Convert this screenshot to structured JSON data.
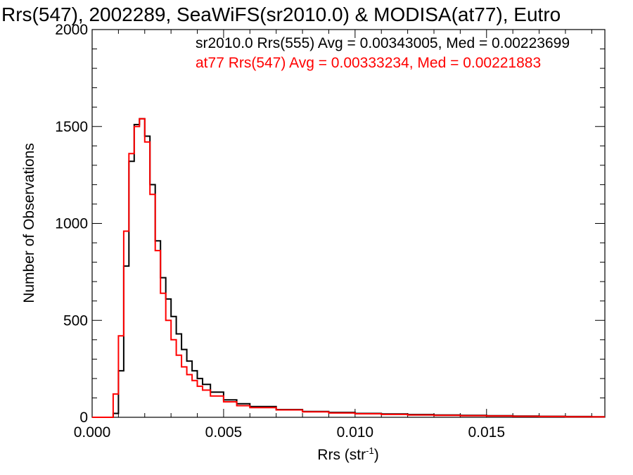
{
  "chart_data": {
    "type": "line",
    "title": "Rrs(547), 2002289, SeaWiFS(sr2010.0) & MODISA(at77), Eutro",
    "xlabel": "Rrs (str",
    "xlabel_sup": "-1",
    "xlabel_close": ")",
    "ylabel": "Number of Observations",
    "xlim": [
      0.0,
      0.0195
    ],
    "ylim": [
      0,
      2000
    ],
    "xticks": [
      {
        "value": 0.0,
        "label": "0.000"
      },
      {
        "value": 0.005,
        "label": "0.005"
      },
      {
        "value": 0.01,
        "label": "0.010"
      },
      {
        "value": 0.015,
        "label": "0.015"
      }
    ],
    "yticks": [
      {
        "value": 0,
        "label": "0"
      },
      {
        "value": 500,
        "label": "500"
      },
      {
        "value": 1000,
        "label": "1000"
      },
      {
        "value": 1500,
        "label": "1500"
      },
      {
        "value": 2000,
        "label": "2000"
      }
    ],
    "grid": false,
    "legend_placement": "top-right",
    "series": [
      {
        "name": "sr2010.0 Rrs(555) Avg = 0.00343005, Med = 0.00223699",
        "color": "#000000",
        "x": [
          0.0008,
          0.001,
          0.0012,
          0.0014,
          0.0016,
          0.0018,
          0.002,
          0.0022,
          0.0024,
          0.0026,
          0.0028,
          0.003,
          0.0032,
          0.0034,
          0.0036,
          0.0038,
          0.004,
          0.0042,
          0.0045,
          0.005,
          0.0055,
          0.006,
          0.007,
          0.008,
          0.009,
          0.01,
          0.011,
          0.012,
          0.013,
          0.014,
          0.015,
          0.016,
          0.017,
          0.018,
          0.019
        ],
        "y": [
          20,
          240,
          780,
          1320,
          1510,
          1540,
          1450,
          1200,
          910,
          720,
          610,
          520,
          430,
          350,
          290,
          240,
          200,
          170,
          130,
          90,
          70,
          55,
          40,
          30,
          25,
          20,
          17,
          14,
          12,
          10,
          8,
          6,
          5,
          4,
          3
        ]
      },
      {
        "name": "at77 Rrs(547) Avg = 0.00333234, Med = 0.00221883",
        "color": "#ff0000",
        "x": [
          0.0008,
          0.001,
          0.0012,
          0.0014,
          0.0016,
          0.0018,
          0.002,
          0.0022,
          0.0024,
          0.0026,
          0.0028,
          0.003,
          0.0032,
          0.0034,
          0.0036,
          0.0038,
          0.004,
          0.0042,
          0.0045,
          0.005,
          0.0055,
          0.006,
          0.007,
          0.008,
          0.009,
          0.01,
          0.011,
          0.012,
          0.013,
          0.014,
          0.015,
          0.016,
          0.017,
          0.018,
          0.019
        ],
        "y": [
          120,
          420,
          960,
          1360,
          1500,
          1540,
          1420,
          1150,
          860,
          640,
          500,
          400,
          320,
          260,
          220,
          190,
          160,
          140,
          110,
          80,
          60,
          50,
          38,
          28,
          22,
          18,
          15,
          12,
          10,
          8,
          7,
          5,
          4,
          3,
          2
        ]
      }
    ]
  }
}
